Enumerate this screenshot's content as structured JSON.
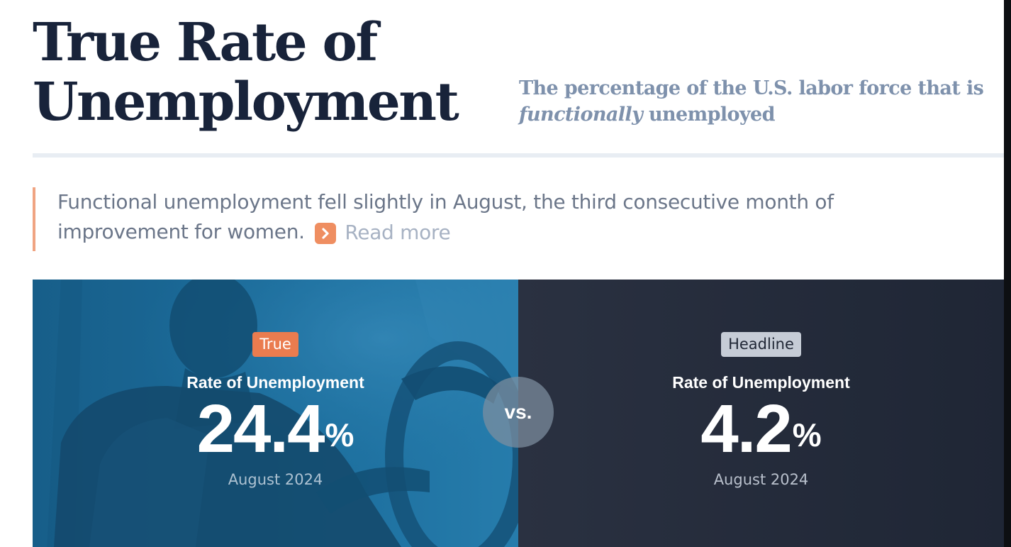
{
  "header": {
    "title_line1": "True Rate of",
    "title_line2": "Unemployment",
    "subtitle_before": "The percentage of the U.S. labor force that is",
    "subtitle_emphasis": "functionally",
    "subtitle_after": "unemployed"
  },
  "summary": {
    "text": "Functional unemployment fell slightly in August, the third consecutive month of improvement for women.",
    "read_more_label": "Read more",
    "read_more_icon": "chevron-right-icon"
  },
  "comparison": {
    "vs_label": "vs.",
    "true_rate": {
      "badge": "True",
      "label": "Rate of Unemployment",
      "value": "24.4",
      "unit": "%",
      "date": "August 2024"
    },
    "headline_rate": {
      "badge": "Headline",
      "label": "Rate of Unemployment",
      "value": "4.2",
      "unit": "%",
      "date": "August 2024"
    }
  },
  "colors": {
    "title": "#18233a",
    "subtitle": "#7e91ac",
    "accent_orange": "#ea7c4f",
    "summary_border": "#f0a482",
    "panel_blue": "#1c6f9f",
    "panel_dark": "#1f2635"
  }
}
